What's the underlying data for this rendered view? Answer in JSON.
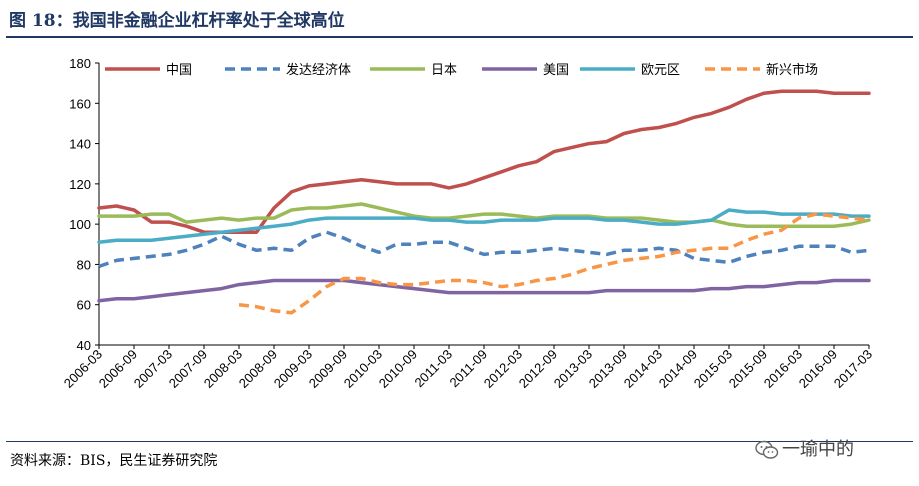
{
  "header": {
    "title": "图 18：我国非金融企业杠杆率处于全球高位"
  },
  "footer": {
    "source": "资料来源：BIS，民生证券研究院",
    "watermark": "一瑜中的"
  },
  "chart_data": {
    "type": "line",
    "title": "图 18：我国非金融企业杠杆率处于全球高位",
    "xlabel": "",
    "ylabel": "",
    "ylim": [
      40,
      180
    ],
    "yticks": [
      40,
      60,
      80,
      100,
      120,
      140,
      160,
      180
    ],
    "legend_position": "top",
    "grid": false,
    "x": [
      "2006-03",
      "2006-06",
      "2006-09",
      "2006-12",
      "2007-03",
      "2007-06",
      "2007-09",
      "2007-12",
      "2008-03",
      "2008-06",
      "2008-09",
      "2008-12",
      "2009-03",
      "2009-06",
      "2009-09",
      "2009-12",
      "2010-03",
      "2010-06",
      "2010-09",
      "2010-12",
      "2011-03",
      "2011-06",
      "2011-09",
      "2011-12",
      "2012-03",
      "2012-06",
      "2012-09",
      "2012-12",
      "2013-03",
      "2013-06",
      "2013-09",
      "2013-12",
      "2014-03",
      "2014-06",
      "2014-09",
      "2014-12",
      "2015-03",
      "2015-06",
      "2015-09",
      "2015-12",
      "2016-03",
      "2016-06",
      "2016-09",
      "2016-12",
      "2017-03"
    ],
    "xtick_labels": [
      "2006-03",
      "2006-09",
      "2007-03",
      "2007-09",
      "2008-03",
      "2008-09",
      "2009-03",
      "2009-09",
      "2010-03",
      "2010-09",
      "2011-03",
      "2011-09",
      "2012-03",
      "2012-09",
      "2013-03",
      "2013-09",
      "2014-03",
      "2014-09",
      "2015-03",
      "2015-09",
      "2016-03",
      "2016-09",
      "2017-03"
    ],
    "series": [
      {
        "name": "中国",
        "color": "#c0504d",
        "dash": "solid",
        "values": [
          108,
          109,
          107,
          101,
          101,
          99,
          96,
          96,
          96,
          96,
          108,
          116,
          119,
          120,
          121,
          122,
          121,
          120,
          120,
          120,
          118,
          120,
          123,
          126,
          129,
          131,
          136,
          138,
          140,
          141,
          145,
          147,
          148,
          150,
          153,
          155,
          158,
          162,
          165,
          166,
          166,
          166,
          165,
          165,
          165
        ]
      },
      {
        "name": "发达经济体",
        "color": "#4f81bd",
        "dash": "dashed",
        "values": [
          79,
          82,
          83,
          84,
          85,
          87,
          90,
          94,
          90,
          87,
          88,
          87,
          93,
          96,
          93,
          89,
          86,
          90,
          90,
          91,
          91,
          88,
          85,
          86,
          86,
          87,
          88,
          87,
          86,
          85,
          87,
          87,
          88,
          87,
          83,
          82,
          81,
          84,
          86,
          87,
          89,
          89,
          89,
          86,
          87
        ]
      },
      {
        "name": "日本",
        "color": "#9bbb59",
        "dash": "solid",
        "values": [
          104,
          104,
          104,
          105,
          105,
          101,
          102,
          103,
          102,
          103,
          103,
          107,
          108,
          108,
          109,
          110,
          108,
          106,
          104,
          103,
          103,
          104,
          105,
          105,
          104,
          103,
          104,
          104,
          104,
          103,
          103,
          103,
          102,
          101,
          101,
          102,
          100,
          99,
          99,
          99,
          99,
          99,
          99,
          100,
          102
        ]
      },
      {
        "name": "美国",
        "color": "#8064a2",
        "dash": "solid",
        "values": [
          62,
          63,
          63,
          64,
          65,
          66,
          67,
          68,
          70,
          71,
          72,
          72,
          72,
          72,
          72,
          71,
          70,
          69,
          68,
          67,
          66,
          66,
          66,
          66,
          66,
          66,
          66,
          66,
          66,
          67,
          67,
          67,
          67,
          67,
          67,
          68,
          68,
          69,
          69,
          70,
          71,
          71,
          72,
          72,
          72
        ]
      },
      {
        "name": "欧元区",
        "color": "#4bacc6",
        "dash": "solid",
        "values": [
          91,
          92,
          92,
          92,
          93,
          94,
          95,
          96,
          97,
          98,
          99,
          100,
          102,
          103,
          103,
          103,
          103,
          103,
          103,
          102,
          102,
          101,
          101,
          102,
          102,
          102,
          103,
          103,
          103,
          102,
          102,
          101,
          100,
          100,
          101,
          102,
          107,
          106,
          106,
          105,
          105,
          105,
          105,
          104,
          104
        ]
      },
      {
        "name": "新兴市场",
        "color": "#f79646",
        "dash": "dashed",
        "values": [
          null,
          null,
          null,
          null,
          null,
          null,
          null,
          null,
          60,
          59,
          57,
          56,
          62,
          69,
          73,
          73,
          71,
          70,
          70,
          71,
          72,
          72,
          71,
          69,
          70,
          72,
          73,
          75,
          78,
          80,
          82,
          83,
          84,
          86,
          87,
          88,
          88,
          92,
          95,
          97,
          103,
          105,
          104,
          103,
          102
        ]
      }
    ]
  }
}
